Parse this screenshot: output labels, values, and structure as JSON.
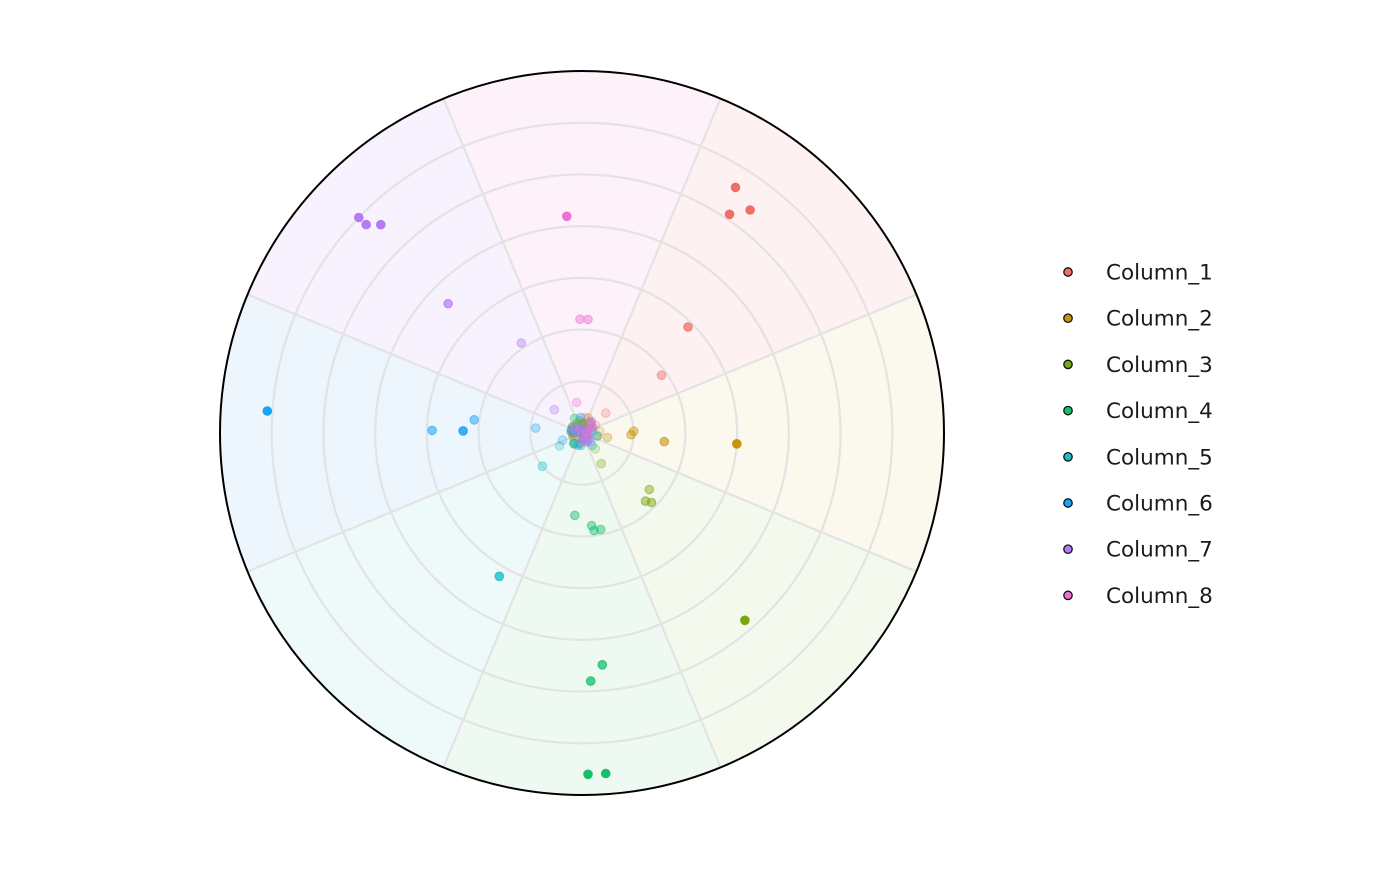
{
  "chart_data": {
    "type": "scatter",
    "subtype": "polar",
    "title": "",
    "radial_rings": 7,
    "sectors": 8,
    "grid": true,
    "legend_position": "right",
    "radial_axis": {
      "range": [
        0,
        7
      ],
      "tick_labels_shown": false
    },
    "series": [
      {
        "name": "Column_1",
        "color": "#ee6f67",
        "sector": 1,
        "points": [
          {
            "r": 5.6,
            "theta_deg": 58,
            "alpha": 1.0
          },
          {
            "r": 5.4,
            "theta_deg": 53,
            "alpha": 1.0
          },
          {
            "r": 5.1,
            "theta_deg": 56,
            "alpha": 1.0
          },
          {
            "r": 2.9,
            "theta_deg": 45,
            "alpha": 0.75
          },
          {
            "r": 1.9,
            "theta_deg": 36,
            "alpha": 0.45
          },
          {
            "r": 0.6,
            "theta_deg": 40,
            "alpha": 0.25
          },
          {
            "r": 0.3,
            "theta_deg": 30,
            "alpha": 0.2
          }
        ]
      },
      {
        "name": "Column_2",
        "color": "#c8940a",
        "sector": 2,
        "points": [
          {
            "r": 3.0,
            "theta_deg": -4,
            "alpha": 1.0
          },
          {
            "r": 1.6,
            "theta_deg": -6,
            "alpha": 0.6
          },
          {
            "r": 1.0,
            "theta_deg": 2,
            "alpha": 0.45
          },
          {
            "r": 0.95,
            "theta_deg": -2,
            "alpha": 0.45
          },
          {
            "r": 0.5,
            "theta_deg": -10,
            "alpha": 0.3
          },
          {
            "r": 0.35,
            "theta_deg": 5,
            "alpha": 0.2
          }
        ]
      },
      {
        "name": "Column_3",
        "color": "#7aa60e",
        "sector": 3,
        "points": [
          {
            "r": 4.8,
            "theta_deg": -49,
            "alpha": 1.0
          },
          {
            "r": 1.9,
            "theta_deg": -45,
            "alpha": 0.5
          },
          {
            "r": 1.8,
            "theta_deg": -47,
            "alpha": 0.5
          },
          {
            "r": 1.7,
            "theta_deg": -40,
            "alpha": 0.45
          },
          {
            "r": 0.7,
            "theta_deg": -58,
            "alpha": 0.3
          },
          {
            "r": 0.4,
            "theta_deg": -50,
            "alpha": 0.2
          }
        ]
      },
      {
        "name": "Column_4",
        "color": "#16c06a",
        "sector": 4,
        "points": [
          {
            "r": 6.6,
            "theta_deg": -89,
            "alpha": 1.0
          },
          {
            "r": 6.6,
            "theta_deg": -86,
            "alpha": 1.0
          },
          {
            "r": 4.8,
            "theta_deg": -88,
            "alpha": 0.75
          },
          {
            "r": 4.5,
            "theta_deg": -85,
            "alpha": 0.75
          },
          {
            "r": 1.9,
            "theta_deg": -83,
            "alpha": 0.45
          },
          {
            "r": 1.9,
            "theta_deg": -79,
            "alpha": 0.45
          },
          {
            "r": 1.8,
            "theta_deg": -84,
            "alpha": 0.45
          },
          {
            "r": 1.6,
            "theta_deg": -95,
            "alpha": 0.45
          },
          {
            "r": 0.2,
            "theta_deg": -100,
            "alpha": 0.35
          }
        ]
      },
      {
        "name": "Column_5",
        "color": "#19c0c8",
        "sector": 5,
        "points": [
          {
            "r": 3.2,
            "theta_deg": -120,
            "alpha": 0.8
          },
          {
            "r": 1.0,
            "theta_deg": -140,
            "alpha": 0.35
          },
          {
            "r": 0.5,
            "theta_deg": -150,
            "alpha": 0.25
          }
        ]
      },
      {
        "name": "Column_6",
        "color": "#19a3f2",
        "sector": 6,
        "points": [
          {
            "r": 6.1,
            "theta_deg": 176,
            "alpha": 1.0
          },
          {
            "r": 2.3,
            "theta_deg": 179,
            "alpha": 0.85
          },
          {
            "r": 2.9,
            "theta_deg": 179,
            "alpha": 0.55
          },
          {
            "r": 2.1,
            "theta_deg": 173,
            "alpha": 0.5
          },
          {
            "r": 0.9,
            "theta_deg": 174,
            "alpha": 0.3
          },
          {
            "r": 0.4,
            "theta_deg": 200,
            "alpha": 0.25
          }
        ]
      },
      {
        "name": "Column_7",
        "color": "#b57bf2",
        "sector": 7,
        "points": [
          {
            "r": 6.0,
            "theta_deg": 136,
            "alpha": 1.0
          },
          {
            "r": 5.8,
            "theta_deg": 136,
            "alpha": 1.0
          },
          {
            "r": 5.6,
            "theta_deg": 134,
            "alpha": 1.0
          },
          {
            "r": 3.6,
            "theta_deg": 136,
            "alpha": 0.7
          },
          {
            "r": 2.1,
            "theta_deg": 124,
            "alpha": 0.4
          },
          {
            "r": 0.7,
            "theta_deg": 140,
            "alpha": 0.3
          }
        ]
      },
      {
        "name": "Column_8",
        "color": "#ef6fd6",
        "sector": 8,
        "points": [
          {
            "r": 4.2,
            "theta_deg": 94,
            "alpha": 1.0
          },
          {
            "r": 2.2,
            "theta_deg": 87,
            "alpha": 0.45
          },
          {
            "r": 2.2,
            "theta_deg": 91,
            "alpha": 0.45
          },
          {
            "r": 0.6,
            "theta_deg": 100,
            "alpha": 0.3
          },
          {
            "r": 0.3,
            "theta_deg": 80,
            "alpha": 0.2
          }
        ]
      }
    ],
    "sector_tints": [
      "#fdf1f1",
      "#fbf8ee",
      "#f4f9ee",
      "#eef9f2",
      "#eef9fa",
      "#eef6fd",
      "#f7f2fd",
      "#fdf1fa"
    ]
  }
}
